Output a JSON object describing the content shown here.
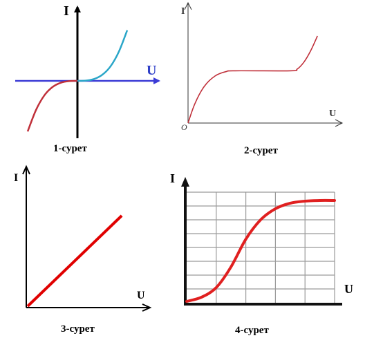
{
  "chart_data": [
    {
      "type": "line",
      "caption": "1-сурет",
      "xlabel": "U",
      "ylabel": "I",
      "xlim": [
        -2,
        2
      ],
      "ylim": [
        -2,
        2
      ],
      "colors": {
        "negative": "#c0303a",
        "positive": "#2aa6c8",
        "axis_x": "#3b3bd6",
        "axis_y": "#000000",
        "label_u": "#2f3fc8"
      },
      "series": [
        {
          "values": [
            [
              -1.8,
              -1.9
            ],
            [
              -1.5,
              -1.1
            ],
            [
              -1.2,
              -0.55
            ],
            [
              -0.9,
              -0.23
            ],
            [
              -0.6,
              -0.07
            ],
            [
              -0.3,
              -0.01
            ],
            [
              0,
              0
            ]
          ]
        },
        {
          "values": [
            [
              0,
              0
            ],
            [
              0.3,
              0.01
            ],
            [
              0.6,
              0.07
            ],
            [
              0.9,
              0.23
            ],
            [
              1.2,
              0.55
            ],
            [
              1.5,
              1.1
            ],
            [
              1.8,
              1.9
            ]
          ]
        }
      ]
    },
    {
      "type": "line",
      "caption": "2-сурет",
      "xlabel": "U",
      "ylabel": "I",
      "origin_label": "O",
      "xlim": [
        0,
        10
      ],
      "ylim": [
        0,
        10
      ],
      "colors": {
        "line": "#c0303a"
      },
      "series": [
        {
          "values": [
            [
              0,
              0
            ],
            [
              0.5,
              2.2
            ],
            [
              1.2,
              4.2
            ],
            [
              2.0,
              5.4
            ],
            [
              2.8,
              5.9
            ],
            [
              3.5,
              6.0
            ],
            [
              7.6,
              6.0
            ],
            [
              8.1,
              6.2
            ],
            [
              8.6,
              7.0
            ],
            [
              9.1,
              8.3
            ],
            [
              9.6,
              10.0
            ]
          ]
        }
      ]
    },
    {
      "type": "line",
      "caption": "3-сурет",
      "xlabel": "U",
      "ylabel": "I",
      "xlim": [
        0,
        10
      ],
      "ylim": [
        0,
        10
      ],
      "colors": {
        "line": "#e00000"
      },
      "series": [
        {
          "values": [
            [
              0,
              0
            ],
            [
              8.3,
              7.8
            ]
          ]
        }
      ]
    },
    {
      "type": "line",
      "caption": "4-сурет",
      "xlabel": "U",
      "ylabel": "I",
      "xlim": [
        0,
        10
      ],
      "ylim": [
        0,
        8
      ],
      "grid": true,
      "grid_cols": 5,
      "grid_rows": 8,
      "colors": {
        "line": "#e02020",
        "grid": "#9a9a9a"
      },
      "series": [
        {
          "values": [
            [
              0,
              0.1
            ],
            [
              1.0,
              0.4
            ],
            [
              2.0,
              1.1
            ],
            [
              3.0,
              2.6
            ],
            [
              4.0,
              4.6
            ],
            [
              5.0,
              6.0
            ],
            [
              6.0,
              6.8
            ],
            [
              7.0,
              7.2
            ],
            [
              8.0,
              7.35
            ],
            [
              9.0,
              7.4
            ],
            [
              10.0,
              7.4
            ]
          ]
        }
      ]
    }
  ]
}
